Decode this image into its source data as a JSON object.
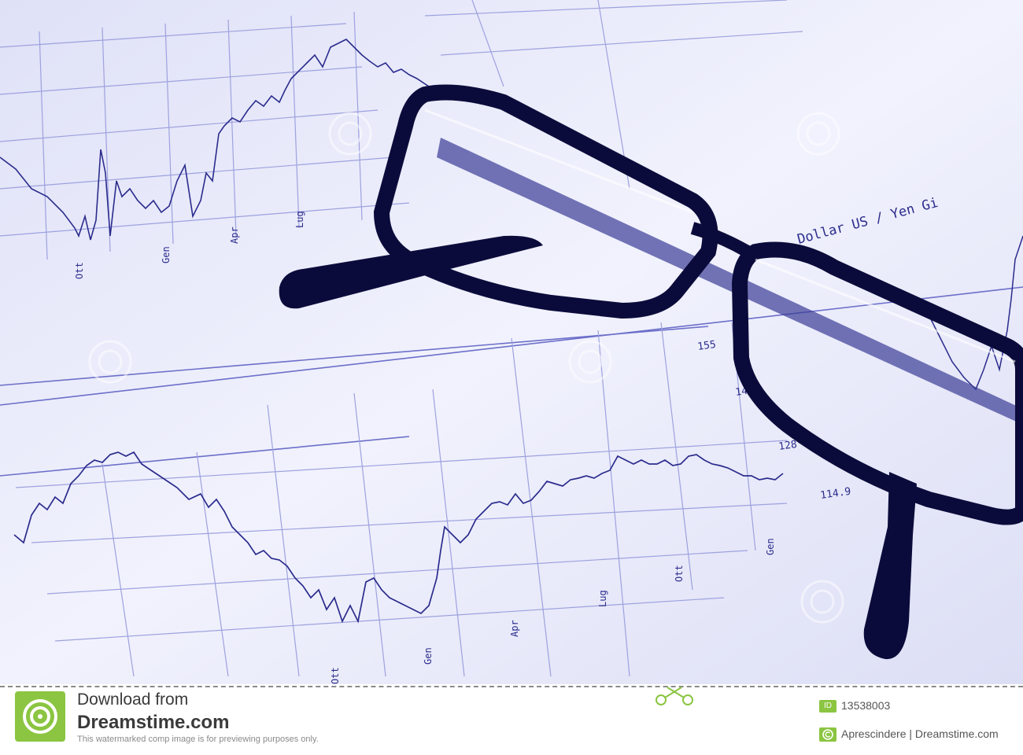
{
  "photo": {
    "chart_labels": {
      "top_months": [
        "Ott",
        "Gen",
        "Apr",
        "Lug"
      ],
      "bottom_months": [
        "Ott",
        "Gen",
        "Apr",
        "Lug",
        "Ott",
        "Gen"
      ],
      "bottom_values": [
        "155",
        "142",
        "128",
        "114.9"
      ],
      "right_title": "Dollar US / Yen Gi"
    },
    "colors": {
      "paper": "#e9eafb",
      "ink": "#2b2c8c",
      "grid": "#8d90d9",
      "frame": "#0b0b3b"
    }
  },
  "footer": {
    "download_text": "Download from",
    "brand": "Dreamstime.com",
    "note": "This watermarked comp image is for previewing purposes only.",
    "id_label": "ID",
    "id_value": "13538003",
    "credit": "Aprescindere | Dreamstime.com",
    "accent": "#8bc541"
  }
}
